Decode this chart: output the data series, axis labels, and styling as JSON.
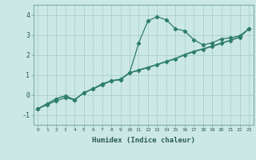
{
  "x": [
    0,
    1,
    2,
    3,
    4,
    5,
    6,
    7,
    8,
    9,
    10,
    11,
    12,
    13,
    14,
    15,
    16,
    17,
    18,
    19,
    20,
    21,
    22,
    23
  ],
  "curve1": [
    -0.7,
    -0.5,
    -0.3,
    -0.15,
    -0.25,
    0.1,
    0.3,
    0.55,
    0.7,
    0.75,
    1.1,
    2.6,
    3.7,
    3.9,
    3.75,
    3.3,
    3.2,
    2.75,
    2.5,
    2.6,
    2.8,
    2.85,
    2.95,
    3.3
  ],
  "curve2": [
    -0.7,
    -0.45,
    -0.2,
    -0.05,
    -0.25,
    0.1,
    0.3,
    0.5,
    0.7,
    0.78,
    1.1,
    1.22,
    1.36,
    1.5,
    1.65,
    1.8,
    2.0,
    2.15,
    2.28,
    2.42,
    2.57,
    2.72,
    2.88,
    3.3
  ],
  "curve3": [
    -0.7,
    -0.45,
    -0.2,
    -0.05,
    -0.25,
    0.1,
    0.3,
    0.5,
    0.7,
    0.78,
    1.1,
    1.25,
    1.38,
    1.52,
    1.67,
    1.82,
    2.02,
    2.18,
    2.3,
    2.44,
    2.59,
    2.73,
    2.9,
    3.3
  ],
  "color": "#2e7d6e",
  "bg_color": "#cce8e4",
  "grid_color": "#aacfcb",
  "xlabel": "Humidex (Indice chaleur)",
  "ylim": [
    -1.5,
    4.5
  ],
  "xlim": [
    -0.5,
    23.5
  ],
  "yticks": [
    -1,
    0,
    1,
    2,
    3,
    4
  ],
  "xticks": [
    0,
    1,
    2,
    3,
    4,
    5,
    6,
    7,
    8,
    9,
    10,
    11,
    12,
    13,
    14,
    15,
    16,
    17,
    18,
    19,
    20,
    21,
    22,
    23
  ]
}
